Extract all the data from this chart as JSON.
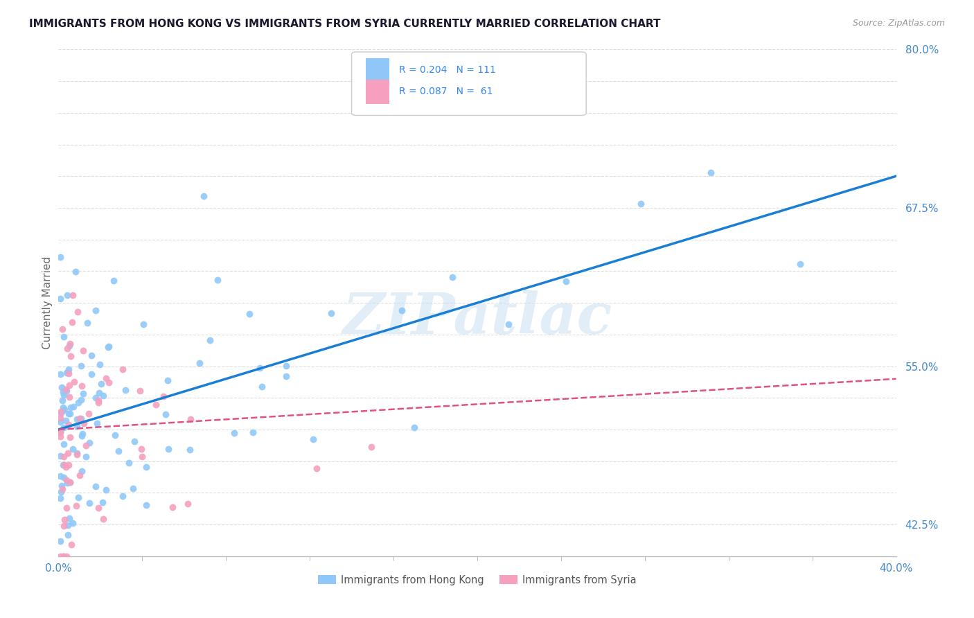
{
  "title": "IMMIGRANTS FROM HONG KONG VS IMMIGRANTS FROM SYRIA CURRENTLY MARRIED CORRELATION CHART",
  "source_text": "Source: ZipAtlas.com",
  "ylabel": "Currently Married",
  "watermark": "ZIPatlас",
  "x_min": 0.0,
  "x_max": 0.4,
  "y_min": 0.4,
  "y_max": 0.8,
  "y_labeled_ticks": [
    0.425,
    0.55,
    0.675,
    0.8
  ],
  "y_labeled_tick_labels": [
    "42.5%",
    "55.0%",
    "67.5%",
    "80.0%"
  ],
  "y_grid_ticks": [
    0.425,
    0.45,
    0.475,
    0.5,
    0.525,
    0.55,
    0.575,
    0.6,
    0.625,
    0.65,
    0.675,
    0.7,
    0.725,
    0.75,
    0.775,
    0.8
  ],
  "hk_color": "#8fc8f8",
  "syria_color": "#f5a0bf",
  "hk_line_color": "#1a7fd4",
  "syria_line_color": "#e05080",
  "hk_R": 0.204,
  "hk_N": 111,
  "syria_R": 0.087,
  "syria_N": 61,
  "hk_line_y0": 0.5,
  "hk_line_y1": 0.7,
  "syria_line_y0": 0.5,
  "syria_line_y1": 0.54,
  "legend_label_hk": "Immigrants from Hong Kong",
  "legend_label_syria": "Immigrants from Syria",
  "background_color": "#ffffff",
  "grid_color": "#dddddd",
  "title_color": "#1a1a2e",
  "tick_color": "#4488cc",
  "x_tick_color": "#888888"
}
